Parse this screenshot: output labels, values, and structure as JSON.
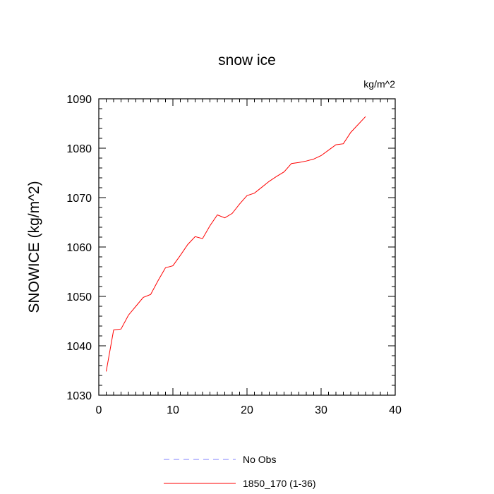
{
  "chart_data": {
    "type": "line",
    "title": "snow ice",
    "units": "kg/m^2",
    "xlabel": "",
    "ylabel": "SNOWICE  (kg/m^2)",
    "xlim": [
      0,
      40
    ],
    "ylim": [
      1030,
      1090
    ],
    "xticks": [
      0,
      10,
      20,
      30,
      40
    ],
    "yticks": [
      1030,
      1040,
      1050,
      1060,
      1070,
      1080,
      1090
    ],
    "grid": false,
    "legend_position": "bottom",
    "series": [
      {
        "name": "1850_170 (1-36)",
        "color": "#ff0000",
        "dash": "solid",
        "x": [
          1,
          2,
          3,
          4,
          5,
          6,
          7,
          8,
          9,
          10,
          11,
          12,
          13,
          14,
          15,
          16,
          17,
          18,
          19,
          20,
          21,
          22,
          23,
          24,
          25,
          26,
          27,
          28,
          29,
          30,
          31,
          32,
          33,
          34,
          35,
          36
        ],
        "values": [
          1034.8,
          1043.2,
          1043.4,
          1046.2,
          1048.0,
          1049.8,
          1050.4,
          1053.2,
          1055.8,
          1056.2,
          1058.3,
          1060.5,
          1062.1,
          1061.7,
          1064.3,
          1066.5,
          1065.9,
          1066.8,
          1068.7,
          1070.4,
          1070.9,
          1072.1,
          1073.3,
          1074.3,
          1075.2,
          1076.9,
          1077.1,
          1077.4,
          1077.8,
          1078.5,
          1079.6,
          1080.7,
          1080.9,
          1083.2,
          1084.8,
          1086.4
        ]
      },
      {
        "name": "No Obs",
        "color": "#8080ff",
        "dash": "dashed",
        "x": [],
        "values": []
      }
    ]
  }
}
